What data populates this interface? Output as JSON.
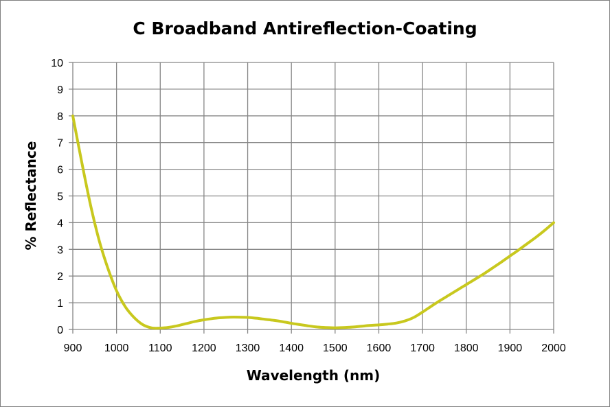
{
  "chart_data": {
    "type": "line",
    "title": "C Broadband Antireflection-Coating",
    "xlabel": "Wavelength (nm)",
    "ylabel": "% Reflectance",
    "xlim": [
      900,
      2000
    ],
    "ylim": [
      0,
      10
    ],
    "x_ticks": [
      900,
      1000,
      1100,
      1200,
      1300,
      1400,
      1500,
      1600,
      1700,
      1800,
      1900,
      2000
    ],
    "y_ticks": [
      0,
      1,
      2,
      3,
      4,
      5,
      6,
      7,
      8,
      9,
      10
    ],
    "grid": true,
    "legend": "none",
    "series": [
      {
        "color": "#c8c81e",
        "x": [
          900,
          920,
          940,
          960,
          980,
          1000,
          1020,
          1040,
          1060,
          1080,
          1100,
          1120,
          1140,
          1160,
          1180,
          1200,
          1220,
          1240,
          1260,
          1280,
          1300,
          1320,
          1340,
          1360,
          1380,
          1400,
          1420,
          1440,
          1460,
          1480,
          1500,
          1520,
          1540,
          1560,
          1580,
          1600,
          1620,
          1640,
          1660,
          1680,
          1700,
          1720,
          1740,
          1760,
          1780,
          1800,
          1820,
          1840,
          1860,
          1880,
          1900,
          1920,
          1940,
          1960,
          1980,
          2000
        ],
        "y": [
          8.0,
          6.3,
          4.7,
          3.35,
          2.3,
          1.45,
          0.85,
          0.45,
          0.18,
          0.06,
          0.05,
          0.08,
          0.14,
          0.22,
          0.3,
          0.36,
          0.41,
          0.44,
          0.46,
          0.46,
          0.45,
          0.42,
          0.38,
          0.34,
          0.29,
          0.23,
          0.18,
          0.13,
          0.09,
          0.07,
          0.06,
          0.07,
          0.09,
          0.12,
          0.15,
          0.17,
          0.2,
          0.24,
          0.32,
          0.45,
          0.65,
          0.87,
          1.08,
          1.28,
          1.48,
          1.68,
          1.88,
          2.08,
          2.3,
          2.52,
          2.75,
          2.98,
          3.22,
          3.46,
          3.72,
          4.0
        ]
      }
    ]
  }
}
